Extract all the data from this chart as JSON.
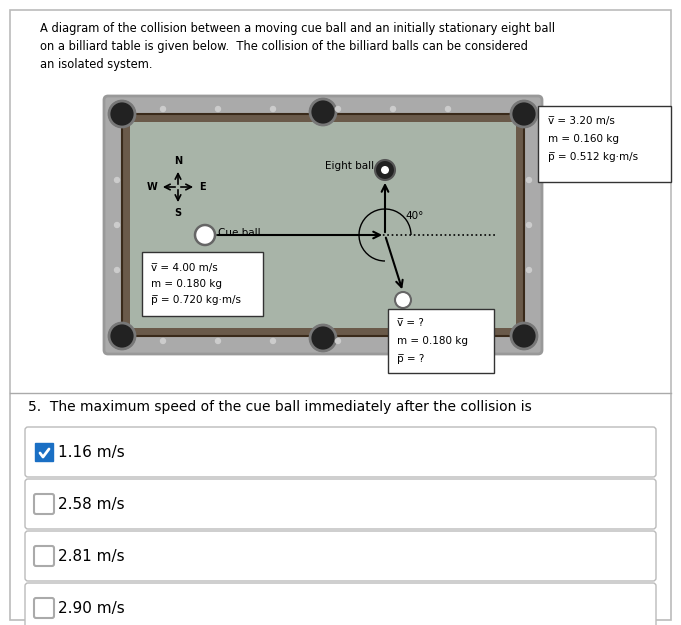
{
  "title_text": "A diagram of the collision between a moving cue ball and an initially stationary eight ball\non a billiard table is given below.  The collision of the billiard balls can be considered\nan isolated system.",
  "question_text": "5.  The maximum speed of the cue ball immediately after the collision is",
  "options": [
    "1.16 m/s",
    "2.58 m/s",
    "2.81 m/s",
    "2.90 m/s"
  ],
  "correct_index": 0,
  "bg_color": "#ffffff",
  "table_felt_color": "#a8b4a8",
  "table_rail_color": "#6a5a4a",
  "table_outer_color": "#aaaaaa",
  "pocket_color": "#222222",
  "dot_color": "#cccccc",
  "eight_ball_label": "Eight ball",
  "eight_ball_v": "v̅ = 3.20 m/s",
  "eight_ball_m": "m = 0.160 kg",
  "eight_ball_p": "p̅ = 0.512 kg·m/s",
  "cue_ball_label": "Cue ball",
  "cue_ball_v": "v̅ = 4.00 m/s",
  "cue_ball_m": "m = 0.180 kg",
  "cue_ball_p": "p̅ = 0.720 kg·m/s",
  "after_v": "v̅ = ?",
  "after_m": "m = 0.180 kg",
  "after_p": "p̅ = ?",
  "angle_label": "40°",
  "outer_rect_color": "#cccccc",
  "question_num": "5."
}
